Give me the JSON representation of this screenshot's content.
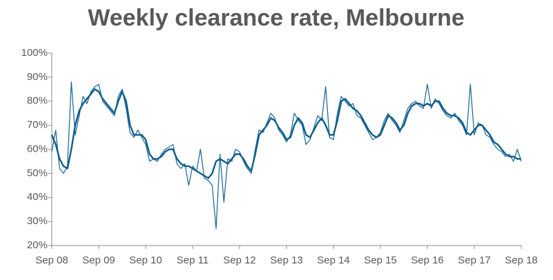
{
  "chart_data": {
    "type": "line",
    "title": "Weekly clearance rate, Melbourne",
    "categories": [
      "Sep 08",
      null,
      null,
      null,
      null,
      null,
      null,
      null,
      null,
      null,
      null,
      null,
      "Sep 09",
      null,
      null,
      null,
      null,
      null,
      null,
      null,
      null,
      null,
      null,
      null,
      "Sep 10",
      null,
      null,
      null,
      null,
      null,
      null,
      null,
      null,
      null,
      null,
      null,
      "Sep 11",
      null,
      null,
      null,
      null,
      null,
      null,
      null,
      null,
      null,
      null,
      null,
      "Sep 12",
      null,
      null,
      null,
      null,
      null,
      null,
      null,
      null,
      null,
      null,
      null,
      "Sep 13",
      null,
      null,
      null,
      null,
      null,
      null,
      null,
      null,
      null,
      null,
      null,
      "Sep 14",
      null,
      null,
      null,
      null,
      null,
      null,
      null,
      null,
      null,
      null,
      null,
      "Sep 15",
      null,
      null,
      null,
      null,
      null,
      null,
      null,
      null,
      null,
      null,
      null,
      "Sep 16",
      null,
      null,
      null,
      null,
      null,
      null,
      null,
      null,
      null,
      null,
      null,
      "Sep 17",
      null,
      null,
      null,
      null,
      null,
      null,
      null,
      null,
      null,
      null,
      null,
      "Sep 18"
    ],
    "series": [
      {
        "color": "#1f6e9c",
        "width": 1.3,
        "values": [
          59,
          68,
          52,
          50,
          53,
          88,
          66,
          74,
          82,
          79,
          84,
          86,
          87,
          80,
          78,
          76,
          74,
          82,
          85,
          77,
          67,
          65,
          68,
          65,
          62,
          55,
          56,
          55,
          58,
          60,
          61,
          62,
          54,
          52,
          54,
          45,
          53,
          51,
          60,
          48,
          47,
          45,
          27,
          58,
          38,
          56,
          55,
          60,
          59,
          55,
          52,
          50,
          60,
          68,
          67,
          71,
          75,
          73,
          68,
          66,
          63,
          66,
          75,
          72,
          70,
          62,
          64,
          69,
          74,
          72,
          86,
          65,
          64,
          75,
          82,
          80,
          78,
          79,
          74,
          73,
          70,
          67,
          64,
          65,
          67,
          72,
          75,
          72,
          70,
          67,
          72,
          77,
          79,
          80,
          78,
          77,
          87,
          77,
          81,
          79,
          76,
          74,
          73,
          75,
          72,
          70,
          66,
          87,
          66,
          71,
          70,
          66,
          65,
          62,
          60,
          59,
          57,
          58,
          55,
          60,
          55
        ]
      },
      {
        "color": "#0e5d8a",
        "width": 2.4,
        "values": [
          66,
          62,
          56,
          53,
          52,
          60,
          70,
          76,
          79,
          81,
          83,
          85,
          84,
          81,
          79,
          77,
          75,
          80,
          84,
          80,
          70,
          66,
          66,
          66,
          64,
          58,
          56,
          56,
          57,
          59,
          60,
          60,
          56,
          54,
          53,
          53,
          52,
          51,
          50,
          49,
          48,
          50,
          55,
          56,
          55,
          54,
          56,
          58,
          58,
          56,
          53,
          51,
          58,
          66,
          68,
          70,
          73,
          72,
          69,
          67,
          64,
          65,
          70,
          73,
          71,
          66,
          65,
          68,
          71,
          73,
          70,
          66,
          66,
          72,
          80,
          81,
          79,
          77,
          76,
          74,
          71,
          68,
          66,
          65,
          66,
          70,
          74,
          73,
          71,
          68,
          70,
          75,
          78,
          79,
          79,
          78,
          79,
          78,
          80,
          80,
          77,
          75,
          74,
          74,
          73,
          71,
          67,
          66,
          68,
          70,
          70,
          68,
          66,
          63,
          62,
          60,
          58,
          57,
          57,
          56,
          56
        ]
      }
    ],
    "ylim": [
      20,
      100
    ],
    "yticks": [
      {
        "value": 20,
        "label": "20%"
      },
      {
        "value": 30,
        "label": "30%"
      },
      {
        "value": 40,
        "label": "40%"
      },
      {
        "value": 50,
        "label": "50%"
      },
      {
        "value": 60,
        "label": "60%"
      },
      {
        "value": 70,
        "label": "70%"
      },
      {
        "value": 80,
        "label": "80%"
      },
      {
        "value": 90,
        "label": "90%"
      },
      {
        "value": 100,
        "label": "100%"
      }
    ],
    "grid": false
  }
}
